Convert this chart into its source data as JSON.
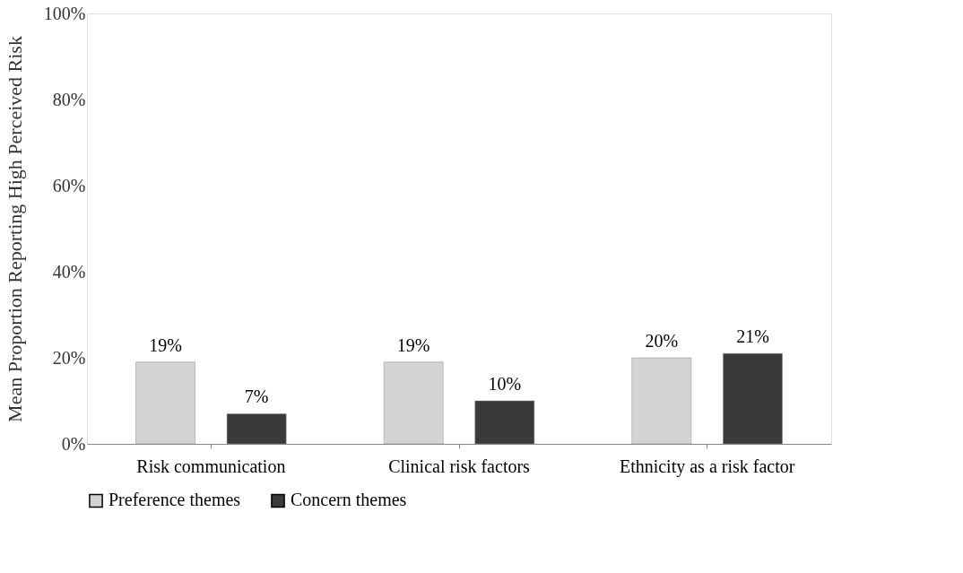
{
  "chart_data": {
    "type": "bar",
    "ylabel": "Mean Proportion Reporting High Perceived Risk",
    "categories": [
      "Risk communication",
      "Clinical risk factors",
      "Ethnicity as a risk factor"
    ],
    "series": [
      {
        "name": "Preference themes",
        "color": "#d4d4d4",
        "values": [
          19,
          19,
          20
        ],
        "value_labels": [
          "19%",
          "19%",
          "20%"
        ]
      },
      {
        "name": "Concern themes",
        "color": "#3a3a3a",
        "values": [
          7,
          10,
          21
        ],
        "value_labels": [
          "7%",
          "10%",
          "21%"
        ]
      }
    ],
    "ylim": [
      0,
      100
    ],
    "yticks": [
      {
        "value": 0,
        "label": "0%"
      },
      {
        "value": 20,
        "label": "20%"
      },
      {
        "value": 40,
        "label": "40%"
      },
      {
        "value": 60,
        "label": "60%"
      },
      {
        "value": 80,
        "label": "80%"
      },
      {
        "value": 100,
        "label": "100%"
      }
    ],
    "grid": false,
    "legend": "bottom"
  }
}
